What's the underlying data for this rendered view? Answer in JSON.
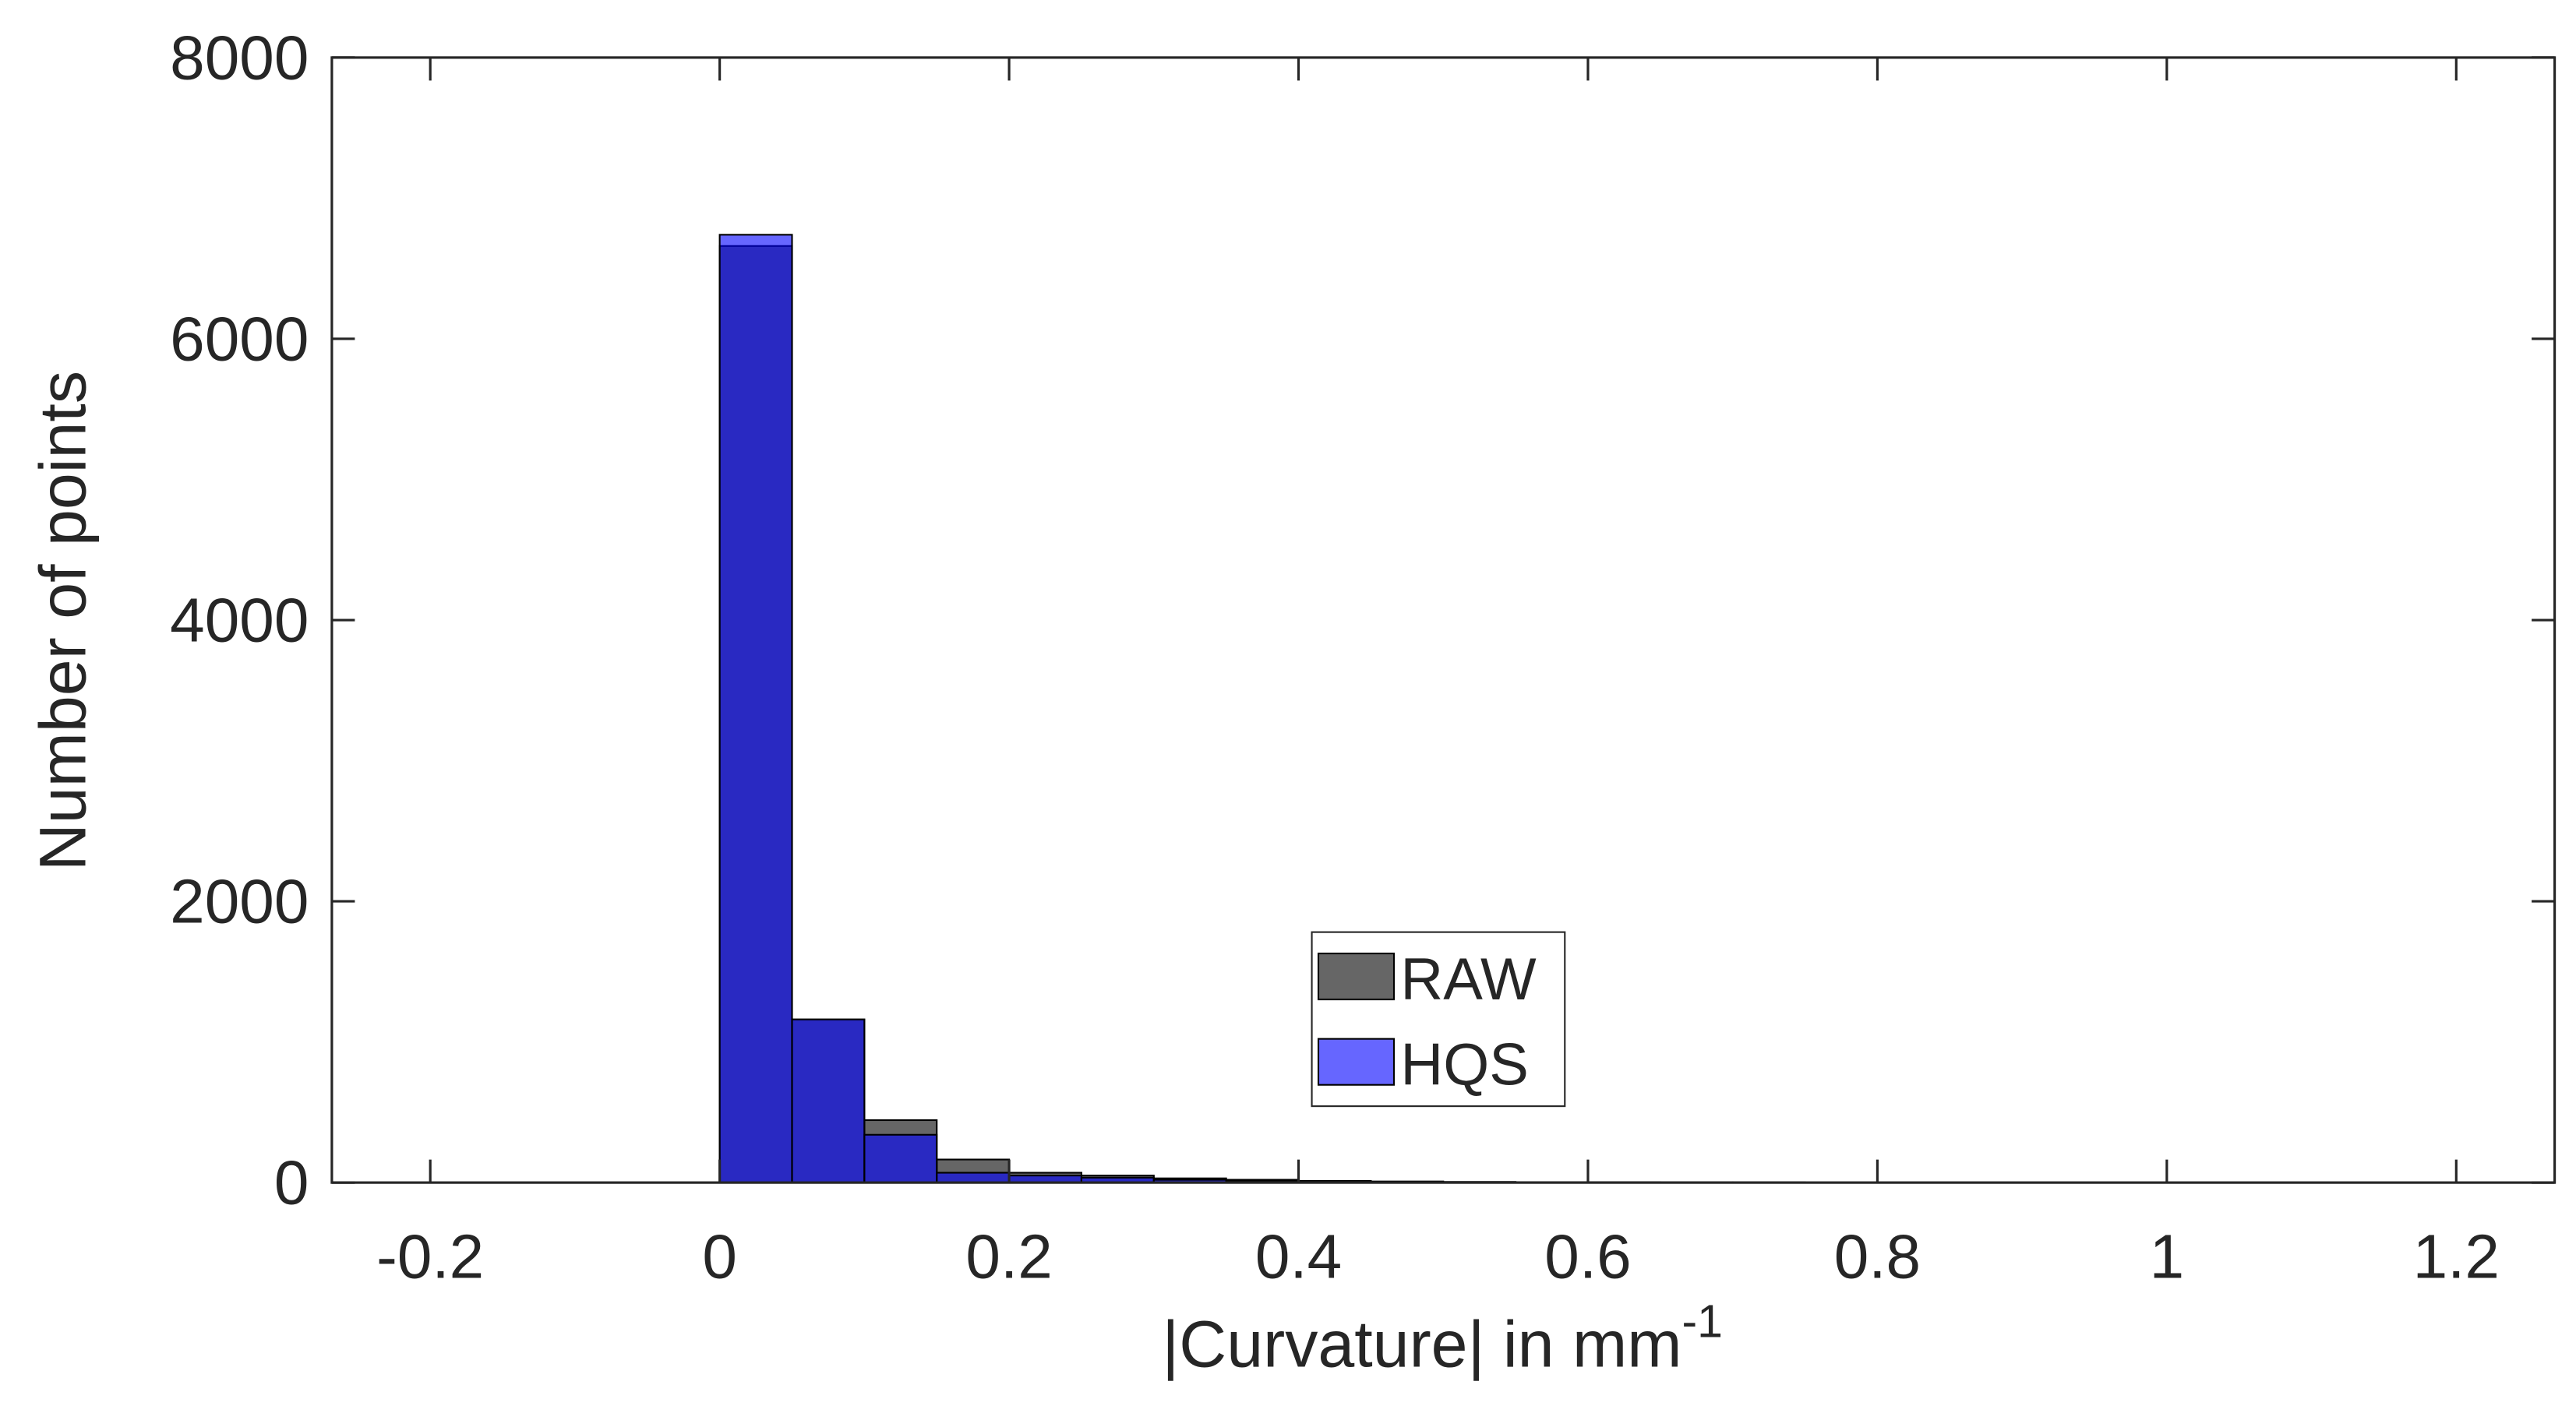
{
  "chart_data": {
    "type": "histogram",
    "xlabel": "|Curvature| in mm",
    "xlabel_superscript": "-1",
    "ylabel": "Number of points",
    "bins": [
      0,
      0.05,
      0.1,
      0.15,
      0.2,
      0.25,
      0.3,
      0.35,
      0.4,
      0.45,
      0.5,
      0.55,
      0.6,
      0.65,
      0.7,
      0.75
    ],
    "series": [
      {
        "name": "RAW",
        "color": "#000000",
        "opacity": 0.6,
        "values": [
          6660,
          1160,
          444,
          164,
          70,
          50,
          30,
          20,
          12,
          8,
          5,
          3,
          3,
          2,
          2
        ]
      },
      {
        "name": "HQS",
        "color": "#0000ff",
        "opacity": 0.6,
        "values": [
          6740,
          1160,
          340,
          70,
          50,
          35,
          20,
          10,
          6,
          4,
          2,
          1,
          1,
          1,
          0
        ]
      }
    ],
    "xlim": [
      -0.268,
      1.268
    ],
    "xticks": [
      -0.2,
      0,
      0.2,
      0.4,
      0.6,
      0.8,
      1,
      1.2
    ],
    "ylim": [
      0,
      8000
    ],
    "yticks": [
      0,
      2000,
      4000,
      6000,
      8000
    ],
    "grid": false,
    "legend_location": "center"
  }
}
